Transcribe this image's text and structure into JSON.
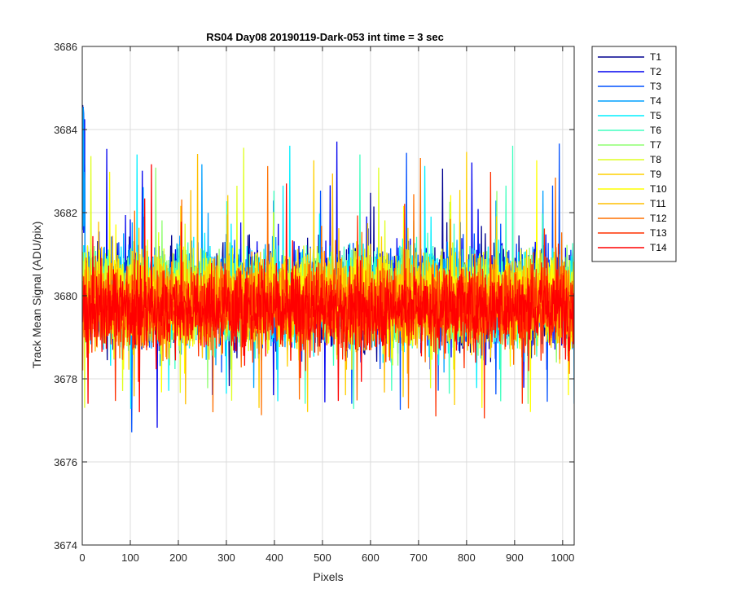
{
  "chart_data": {
    "type": "line",
    "title": "RS04 Day08 20190119-Dark-053 int time = 3 sec",
    "xlabel": "Pixels",
    "ylabel": "Track Mean Signal (ADU/pix)",
    "xlim": [
      0,
      1024
    ],
    "ylim": [
      3674,
      3686
    ],
    "xticks": [
      "0",
      "100",
      "200",
      "300",
      "400",
      "500",
      "600",
      "700",
      "800",
      "900",
      "1000"
    ],
    "yticks": [
      "3674",
      "3676",
      "3678",
      "3680",
      "3682",
      "3684",
      "3686"
    ],
    "grid": true,
    "legend_position": "outside-right-top",
    "series": [
      {
        "name": "T1",
        "color": "#00008f",
        "mean": 3680.0,
        "spread": 1.15
      },
      {
        "name": "T2",
        "color": "#0000ef",
        "mean": 3680.0,
        "spread": 1.15
      },
      {
        "name": "T3",
        "color": "#0050ff",
        "mean": 3680.0,
        "spread": 1.1
      },
      {
        "name": "T4",
        "color": "#00a0ff",
        "mean": 3680.0,
        "spread": 1.1
      },
      {
        "name": "T5",
        "color": "#00efff",
        "mean": 3680.0,
        "spread": 1.05
      },
      {
        "name": "T6",
        "color": "#40ffbf",
        "mean": 3680.0,
        "spread": 1.05
      },
      {
        "name": "T7",
        "color": "#8fff70",
        "mean": 3680.0,
        "spread": 1.0
      },
      {
        "name": "T8",
        "color": "#dfff20",
        "mean": 3680.0,
        "spread": 1.0
      },
      {
        "name": "T9",
        "color": "#ffd000",
        "mean": 3679.9,
        "spread": 1.0
      },
      {
        "name": "T10",
        "color": "#ffff00",
        "mean": 3679.9,
        "spread": 1.0
      },
      {
        "name": "T11",
        "color": "#ffbf00",
        "mean": 3679.9,
        "spread": 0.95
      },
      {
        "name": "T12",
        "color": "#ff7000",
        "mean": 3679.8,
        "spread": 0.95
      },
      {
        "name": "T13",
        "color": "#ff3000",
        "mean": 3679.7,
        "spread": 0.9
      },
      {
        "name": "T14",
        "color": "#ff0000",
        "mean": 3679.7,
        "spread": 0.9
      }
    ],
    "n_points": 1024
  }
}
